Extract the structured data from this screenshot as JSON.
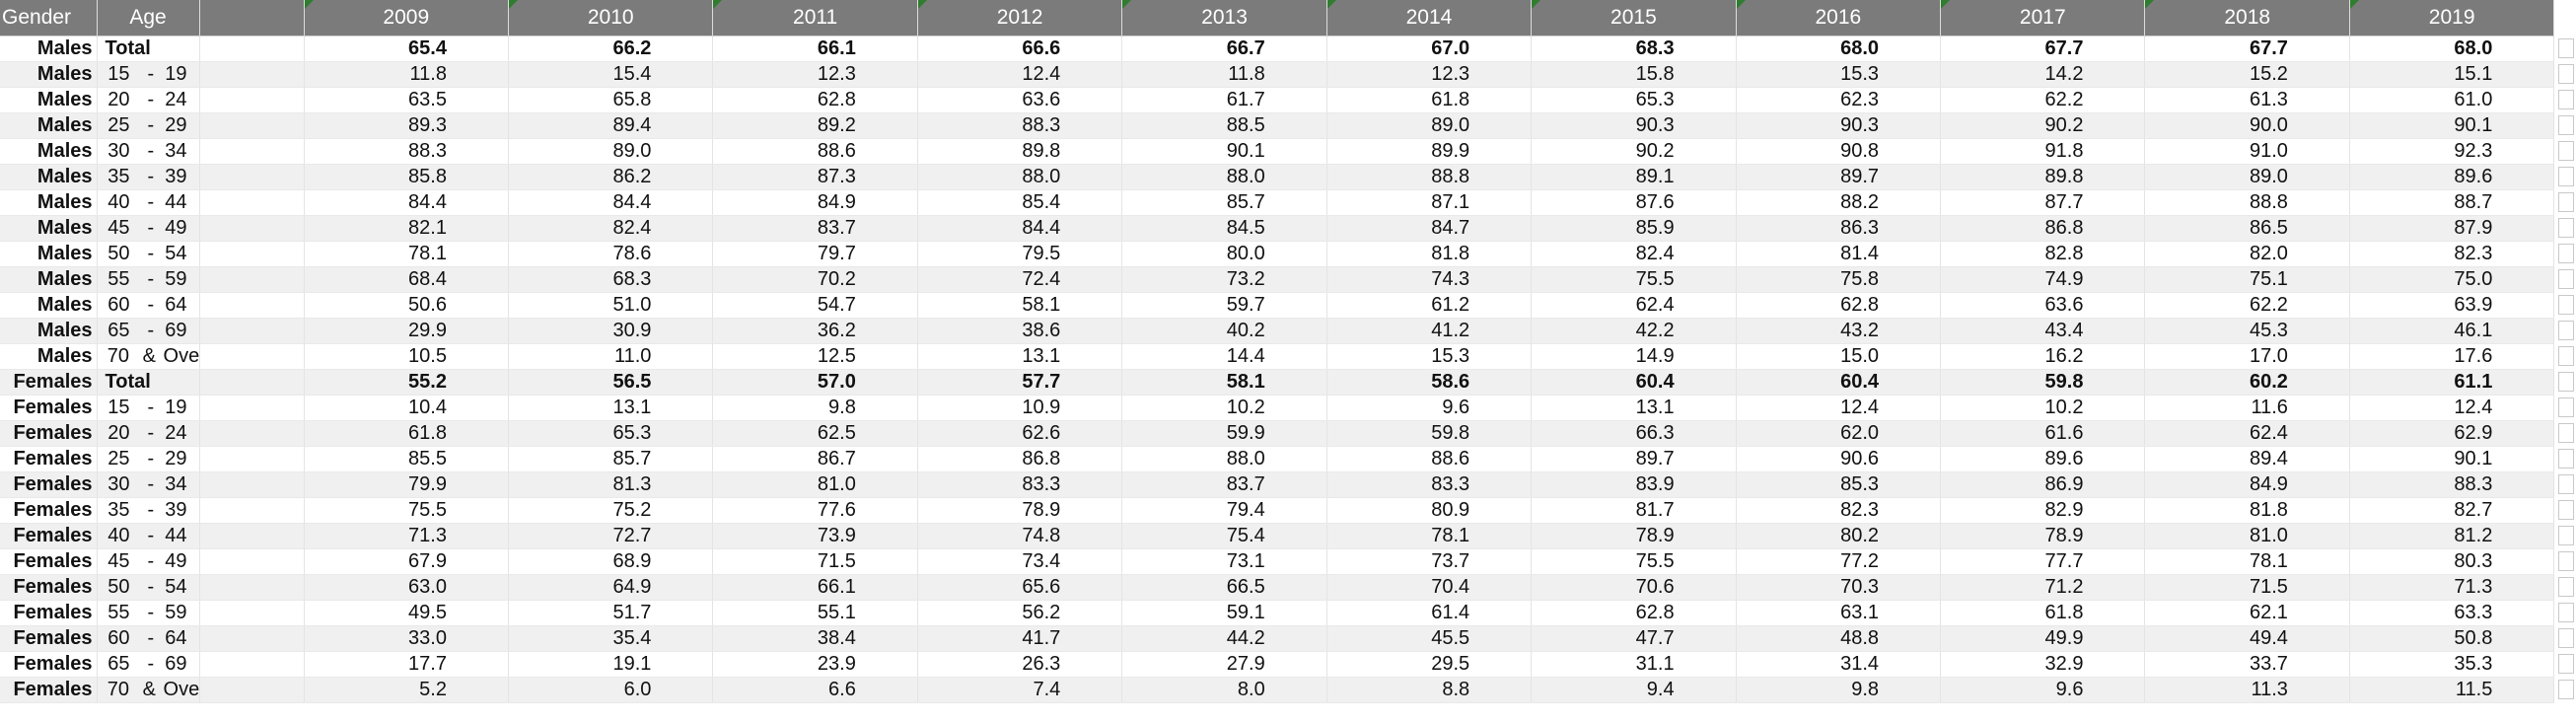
{
  "header": {
    "gender_label": "Gender",
    "age_label": "Age",
    "years": [
      "2009",
      "2010",
      "2011",
      "2012",
      "2013",
      "2014",
      "2015",
      "2016",
      "2017",
      "2018",
      "2019"
    ]
  },
  "rows": [
    {
      "gender": "Males",
      "age_from": "Total",
      "age_sep": "",
      "age_to": "",
      "total": true,
      "values": [
        "65.4",
        "66.2",
        "66.1",
        "66.6",
        "66.7",
        "67.0",
        "68.3",
        "68.0",
        "67.7",
        "67.7",
        "68.0"
      ]
    },
    {
      "gender": "Males",
      "age_from": "15",
      "age_sep": "-",
      "age_to": "19",
      "total": false,
      "values": [
        "11.8",
        "15.4",
        "12.3",
        "12.4",
        "11.8",
        "12.3",
        "15.8",
        "15.3",
        "14.2",
        "15.2",
        "15.1"
      ]
    },
    {
      "gender": "Males",
      "age_from": "20",
      "age_sep": "-",
      "age_to": "24",
      "total": false,
      "values": [
        "63.5",
        "65.8",
        "62.8",
        "63.6",
        "61.7",
        "61.8",
        "65.3",
        "62.3",
        "62.2",
        "61.3",
        "61.0"
      ]
    },
    {
      "gender": "Males",
      "age_from": "25",
      "age_sep": "-",
      "age_to": "29",
      "total": false,
      "values": [
        "89.3",
        "89.4",
        "89.2",
        "88.3",
        "88.5",
        "89.0",
        "90.3",
        "90.3",
        "90.2",
        "90.0",
        "90.1"
      ]
    },
    {
      "gender": "Males",
      "age_from": "30",
      "age_sep": "-",
      "age_to": "34",
      "total": false,
      "values": [
        "88.3",
        "89.0",
        "88.6",
        "89.8",
        "90.1",
        "89.9",
        "90.2",
        "90.8",
        "91.8",
        "91.0",
        "92.3"
      ]
    },
    {
      "gender": "Males",
      "age_from": "35",
      "age_sep": "-",
      "age_to": "39",
      "total": false,
      "values": [
        "85.8",
        "86.2",
        "87.3",
        "88.0",
        "88.0",
        "88.8",
        "89.1",
        "89.7",
        "89.8",
        "89.0",
        "89.6"
      ]
    },
    {
      "gender": "Males",
      "age_from": "40",
      "age_sep": "-",
      "age_to": "44",
      "total": false,
      "values": [
        "84.4",
        "84.4",
        "84.9",
        "85.4",
        "85.7",
        "87.1",
        "87.6",
        "88.2",
        "87.7",
        "88.8",
        "88.7"
      ]
    },
    {
      "gender": "Males",
      "age_from": "45",
      "age_sep": "-",
      "age_to": "49",
      "total": false,
      "values": [
        "82.1",
        "82.4",
        "83.7",
        "84.4",
        "84.5",
        "84.7",
        "85.9",
        "86.3",
        "86.8",
        "86.5",
        "87.9"
      ]
    },
    {
      "gender": "Males",
      "age_from": "50",
      "age_sep": "-",
      "age_to": "54",
      "total": false,
      "values": [
        "78.1",
        "78.6",
        "79.7",
        "79.5",
        "80.0",
        "81.8",
        "82.4",
        "81.4",
        "82.8",
        "82.0",
        "82.3"
      ]
    },
    {
      "gender": "Males",
      "age_from": "55",
      "age_sep": "-",
      "age_to": "59",
      "total": false,
      "values": [
        "68.4",
        "68.3",
        "70.2",
        "72.4",
        "73.2",
        "74.3",
        "75.5",
        "75.8",
        "74.9",
        "75.1",
        "75.0"
      ]
    },
    {
      "gender": "Males",
      "age_from": "60",
      "age_sep": "-",
      "age_to": "64",
      "total": false,
      "values": [
        "50.6",
        "51.0",
        "54.7",
        "58.1",
        "59.7",
        "61.2",
        "62.4",
        "62.8",
        "63.6",
        "62.2",
        "63.9"
      ]
    },
    {
      "gender": "Males",
      "age_from": "65",
      "age_sep": "-",
      "age_to": "69",
      "total": false,
      "values": [
        "29.9",
        "30.9",
        "36.2",
        "38.6",
        "40.2",
        "41.2",
        "42.2",
        "43.2",
        "43.4",
        "45.3",
        "46.1"
      ]
    },
    {
      "gender": "Males",
      "age_from": "70",
      "age_sep": "&",
      "age_to": "Over",
      "total": false,
      "values": [
        "10.5",
        "11.0",
        "12.5",
        "13.1",
        "14.4",
        "15.3",
        "14.9",
        "15.0",
        "16.2",
        "17.0",
        "17.6"
      ]
    },
    {
      "gender": "Females",
      "age_from": "Total",
      "age_sep": "",
      "age_to": "",
      "total": true,
      "values": [
        "55.2",
        "56.5",
        "57.0",
        "57.7",
        "58.1",
        "58.6",
        "60.4",
        "60.4",
        "59.8",
        "60.2",
        "61.1"
      ]
    },
    {
      "gender": "Females",
      "age_from": "15",
      "age_sep": "-",
      "age_to": "19",
      "total": false,
      "values": [
        "10.4",
        "13.1",
        "9.8",
        "10.9",
        "10.2",
        "9.6",
        "13.1",
        "12.4",
        "10.2",
        "11.6",
        "12.4"
      ]
    },
    {
      "gender": "Females",
      "age_from": "20",
      "age_sep": "-",
      "age_to": "24",
      "total": false,
      "values": [
        "61.8",
        "65.3",
        "62.5",
        "62.6",
        "59.9",
        "59.8",
        "66.3",
        "62.0",
        "61.6",
        "62.4",
        "62.9"
      ]
    },
    {
      "gender": "Females",
      "age_from": "25",
      "age_sep": "-",
      "age_to": "29",
      "total": false,
      "values": [
        "85.5",
        "85.7",
        "86.7",
        "86.8",
        "88.0",
        "88.6",
        "89.7",
        "90.6",
        "89.6",
        "89.4",
        "90.1"
      ]
    },
    {
      "gender": "Females",
      "age_from": "30",
      "age_sep": "-",
      "age_to": "34",
      "total": false,
      "values": [
        "79.9",
        "81.3",
        "81.0",
        "83.3",
        "83.7",
        "83.3",
        "83.9",
        "85.3",
        "86.9",
        "84.9",
        "88.3"
      ]
    },
    {
      "gender": "Females",
      "age_from": "35",
      "age_sep": "-",
      "age_to": "39",
      "total": false,
      "values": [
        "75.5",
        "75.2",
        "77.6",
        "78.9",
        "79.4",
        "80.9",
        "81.7",
        "82.3",
        "82.9",
        "81.8",
        "82.7"
      ]
    },
    {
      "gender": "Females",
      "age_from": "40",
      "age_sep": "-",
      "age_to": "44",
      "total": false,
      "values": [
        "71.3",
        "72.7",
        "73.9",
        "74.8",
        "75.4",
        "78.1",
        "78.9",
        "80.2",
        "78.9",
        "81.0",
        "81.2"
      ]
    },
    {
      "gender": "Females",
      "age_from": "45",
      "age_sep": "-",
      "age_to": "49",
      "total": false,
      "values": [
        "67.9",
        "68.9",
        "71.5",
        "73.4",
        "73.1",
        "73.7",
        "75.5",
        "77.2",
        "77.7",
        "78.1",
        "80.3"
      ]
    },
    {
      "gender": "Females",
      "age_from": "50",
      "age_sep": "-",
      "age_to": "54",
      "total": false,
      "values": [
        "63.0",
        "64.9",
        "66.1",
        "65.6",
        "66.5",
        "70.4",
        "70.6",
        "70.3",
        "71.2",
        "71.5",
        "71.3"
      ]
    },
    {
      "gender": "Females",
      "age_from": "55",
      "age_sep": "-",
      "age_to": "59",
      "total": false,
      "values": [
        "49.5",
        "51.7",
        "55.1",
        "56.2",
        "59.1",
        "61.4",
        "62.8",
        "63.1",
        "61.8",
        "62.1",
        "63.3"
      ]
    },
    {
      "gender": "Females",
      "age_from": "60",
      "age_sep": "-",
      "age_to": "64",
      "total": false,
      "values": [
        "33.0",
        "35.4",
        "38.4",
        "41.7",
        "44.2",
        "45.5",
        "47.7",
        "48.8",
        "49.9",
        "49.4",
        "50.8"
      ]
    },
    {
      "gender": "Females",
      "age_from": "65",
      "age_sep": "-",
      "age_to": "69",
      "total": false,
      "values": [
        "17.7",
        "19.1",
        "23.9",
        "26.3",
        "27.9",
        "29.5",
        "31.1",
        "31.4",
        "32.9",
        "33.7",
        "35.3"
      ]
    },
    {
      "gender": "Females",
      "age_from": "70",
      "age_sep": "&",
      "age_to": "Over",
      "total": false,
      "values": [
        "5.2",
        "6.0",
        "6.6",
        "7.4",
        "8.0",
        "8.8",
        "9.4",
        "9.8",
        "9.6",
        "11.3",
        "11.5"
      ]
    }
  ],
  "colors": {
    "header_bg": "#7b7b7b",
    "header_text": "#ffffff",
    "stripe": "#f0f0f0",
    "corner_marker": "#2f7d2f"
  }
}
